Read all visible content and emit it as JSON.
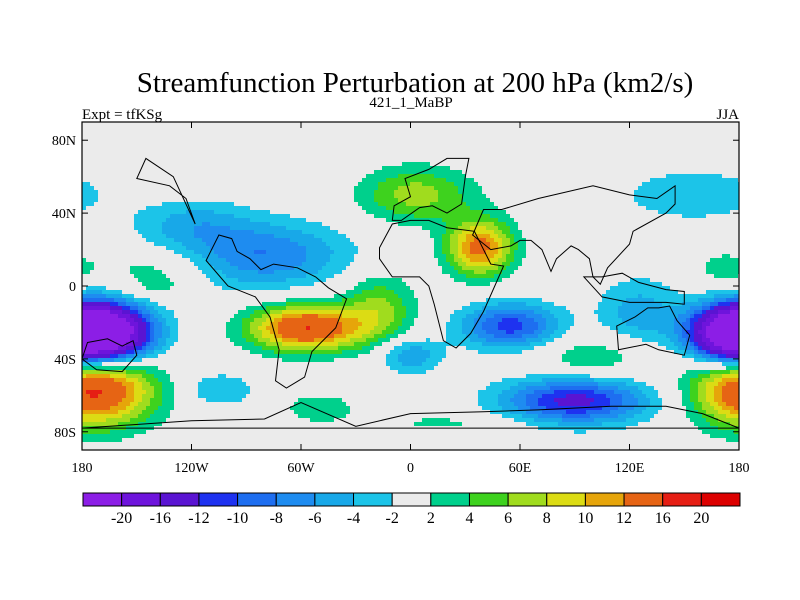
{
  "chart_data": {
    "type": "heatmap",
    "title": "Streamfunction Perturbation at 200 hPa (km2/s)",
    "left_subtitle": "Expt = tfKSg",
    "center_subtitle": "421_1_MaBP",
    "right_subtitle": "JJA",
    "x_range": [
      -180,
      180
    ],
    "y_range": [
      -90,
      90
    ],
    "x_ticks": [
      {
        "value": -180,
        "label": "180"
      },
      {
        "value": -120,
        "label": "120W"
      },
      {
        "value": -60,
        "label": "60W"
      },
      {
        "value": 0,
        "label": "0"
      },
      {
        "value": 60,
        "label": "60E"
      },
      {
        "value": 120,
        "label": "120E"
      },
      {
        "value": 180,
        "label": "180"
      }
    ],
    "y_ticks": [
      {
        "value": 80,
        "label": "80N"
      },
      {
        "value": 40,
        "label": "40N"
      },
      {
        "value": 0,
        "label": "0"
      },
      {
        "value": -40,
        "label": "40S"
      },
      {
        "value": -80,
        "label": "80S"
      }
    ],
    "levels": [
      -20,
      -16,
      -12,
      -10,
      -8,
      -6,
      -4,
      -2,
      2,
      4,
      6,
      8,
      10,
      12,
      16,
      20
    ],
    "level_labels": [
      "-20",
      "-16",
      "-12",
      "-10",
      "-8",
      "-6",
      "-4",
      "-2",
      "2",
      "4",
      "6",
      "8",
      "10",
      "12",
      "16",
      "20"
    ],
    "colors": [
      "#8c1ee6",
      "#6e14dc",
      "#5a14d2",
      "#1e32f0",
      "#1e6ef0",
      "#1e8cf0",
      "#18a8e8",
      "#1cc4e8",
      "#ebebeb",
      "#00d08c",
      "#3ed21e",
      "#a0dc1e",
      "#dcdc14",
      "#e6a50a",
      "#e66414",
      "#e61e14",
      "#dc0000"
    ],
    "features": [
      {
        "lon": -170,
        "lat": -26,
        "amp": -22,
        "slon": 20,
        "slat": 11
      },
      {
        "lon": 180,
        "lat": -26,
        "amp": -20,
        "slon": 18,
        "slat": 11
      },
      {
        "lon": -82,
        "lat": 17,
        "amp": -8,
        "slon": 34,
        "slat": 13
      },
      {
        "lon": -120,
        "lat": 35,
        "amp": -4,
        "slon": 22,
        "slat": 9
      },
      {
        "lon": 155,
        "lat": 50,
        "amp": -4,
        "slon": 28,
        "slat": 10
      },
      {
        "lon": 90,
        "lat": -63,
        "amp": -13,
        "slon": 28,
        "slat": 9
      },
      {
        "lon": 55,
        "lat": -22,
        "amp": -11,
        "slon": 19,
        "slat": 9
      },
      {
        "lon": 0,
        "lat": -38,
        "amp": -6,
        "slon": 12,
        "slat": 7
      },
      {
        "lon": 125,
        "lat": -15,
        "amp": -5,
        "slon": 16,
        "slat": 14
      },
      {
        "lon": -105,
        "lat": -57,
        "amp": -4,
        "slon": 15,
        "slat": 7
      },
      {
        "lon": -57,
        "lat": -23,
        "amp": 16,
        "slon": 22,
        "slat": 9
      },
      {
        "lon": -17,
        "lat": -12,
        "amp": 6,
        "slon": 14,
        "slat": 14
      },
      {
        "lon": 38,
        "lat": 21,
        "amp": 13,
        "slon": 13,
        "slat": 11
      },
      {
        "lon": 3,
        "lat": 50,
        "amp": 7,
        "slon": 22,
        "slat": 11
      },
      {
        "lon": -165,
        "lat": -57,
        "amp": 9,
        "slon": 22,
        "slat": 14
      },
      {
        "lon": 180,
        "lat": -57,
        "amp": 9,
        "slon": 20,
        "slat": 14
      },
      {
        "lon": -138,
        "lat": 11,
        "amp": 3.5,
        "slon": 22,
        "slat": 7
      },
      {
        "lon": -138,
        "lat": -1,
        "amp": 3,
        "slon": 14,
        "slat": 5
      },
      {
        "lon": -50,
        "lat": -67,
        "amp": 3.5,
        "slon": 15,
        "slat": 6
      },
      {
        "lon": 100,
        "lat": -39,
        "amp": 4,
        "slon": 25,
        "slat": 9
      },
      {
        "lon": 22,
        "lat": -75,
        "amp": 2.5,
        "slon": 32,
        "slat": 4
      },
      {
        "lon": 172,
        "lat": 9,
        "amp": 3,
        "slon": 12,
        "slat": 8
      }
    ],
    "coastlines": [
      [
        [
          -177,
          -31
        ],
        [
          -166,
          -29
        ],
        [
          -158,
          -33
        ],
        [
          -152,
          -30
        ],
        [
          -150,
          -38
        ],
        [
          -158,
          -47
        ],
        [
          -172,
          -46
        ],
        [
          -180,
          -40
        ]
      ],
      [
        [
          -105,
          28
        ],
        [
          -112,
          14
        ],
        [
          -100,
          0
        ],
        [
          -85,
          -6
        ],
        [
          -77,
          -17
        ],
        [
          -72,
          -35
        ],
        [
          -74,
          -52
        ],
        [
          -68,
          -56
        ],
        [
          -58,
          -50
        ],
        [
          -54,
          -36
        ],
        [
          -41,
          -23
        ],
        [
          -35,
          -7
        ],
        [
          -45,
          -1
        ],
        [
          -52,
          5
        ],
        [
          -62,
          10
        ],
        [
          -75,
          12
        ],
        [
          -82,
          9
        ],
        [
          -88,
          15
        ],
        [
          -95,
          19
        ],
        [
          -98,
          26
        ]
      ],
      [
        [
          -17,
          15
        ],
        [
          -10,
          5
        ],
        [
          5,
          5
        ],
        [
          10,
          0
        ],
        [
          13,
          -10
        ],
        [
          18,
          -30
        ],
        [
          25,
          -34
        ],
        [
          33,
          -26
        ],
        [
          40,
          -14
        ],
        [
          51,
          11
        ],
        [
          44,
          12
        ],
        [
          35,
          30
        ],
        [
          20,
          32
        ],
        [
          10,
          36
        ],
        [
          0,
          36
        ],
        [
          -10,
          34
        ],
        [
          -17,
          21
        ]
      ],
      [
        [
          34,
          28
        ],
        [
          44,
          20
        ],
        [
          55,
          22
        ],
        [
          60,
          25
        ],
        [
          66,
          25
        ],
        [
          72,
          20
        ],
        [
          77,
          8
        ],
        [
          80,
          15
        ],
        [
          88,
          22
        ],
        [
          92,
          20
        ],
        [
          98,
          15
        ],
        [
          100,
          5
        ],
        [
          104,
          1
        ],
        [
          108,
          10
        ],
        [
          120,
          23
        ],
        [
          122,
          30
        ],
        [
          140,
          40
        ],
        [
          145,
          45
        ],
        [
          145,
          55
        ],
        [
          135,
          48
        ],
        [
          120,
          50
        ],
        [
          100,
          55
        ],
        [
          70,
          48
        ],
        [
          50,
          42
        ],
        [
          40,
          42
        ]
      ],
      [
        [
          -10,
          36
        ],
        [
          -9,
          44
        ],
        [
          0,
          49
        ],
        [
          -3,
          59
        ],
        [
          10,
          64
        ],
        [
          20,
          70
        ],
        [
          32,
          70
        ],
        [
          30,
          60
        ],
        [
          28,
          45
        ],
        [
          20,
          40
        ],
        [
          12,
          44
        ],
        [
          5,
          43
        ],
        [
          -5,
          36
        ]
      ],
      [
        [
          113,
          -22
        ],
        [
          114,
          -35
        ],
        [
          129,
          -32
        ],
        [
          136,
          -35
        ],
        [
          150,
          -38
        ],
        [
          153,
          -27
        ],
        [
          146,
          -19
        ],
        [
          142,
          -11
        ],
        [
          136,
          -12
        ],
        [
          130,
          -12
        ],
        [
          123,
          -17
        ]
      ],
      [
        [
          95,
          5
        ],
        [
          105,
          -6
        ],
        [
          120,
          -9
        ],
        [
          140,
          -9
        ],
        [
          150,
          -10
        ],
        [
          150,
          -3
        ],
        [
          140,
          -2
        ],
        [
          125,
          2
        ],
        [
          116,
          7
        ],
        [
          105,
          5
        ]
      ],
      [
        [
          -150,
          59
        ],
        [
          -132,
          55
        ],
        [
          -123,
          48
        ],
        [
          -118,
          34
        ],
        [
          -130,
          60
        ],
        [
          -145,
          70
        ]
      ],
      [
        [
          -180,
          -78
        ],
        [
          -120,
          -74
        ],
        [
          -80,
          -73
        ],
        [
          -60,
          -64
        ],
        [
          -30,
          -77
        ],
        [
          0,
          -70
        ],
        [
          40,
          -69
        ],
        [
          70,
          -68
        ],
        [
          110,
          -66
        ],
        [
          140,
          -66
        ],
        [
          160,
          -70
        ],
        [
          180,
          -78
        ]
      ]
    ]
  }
}
